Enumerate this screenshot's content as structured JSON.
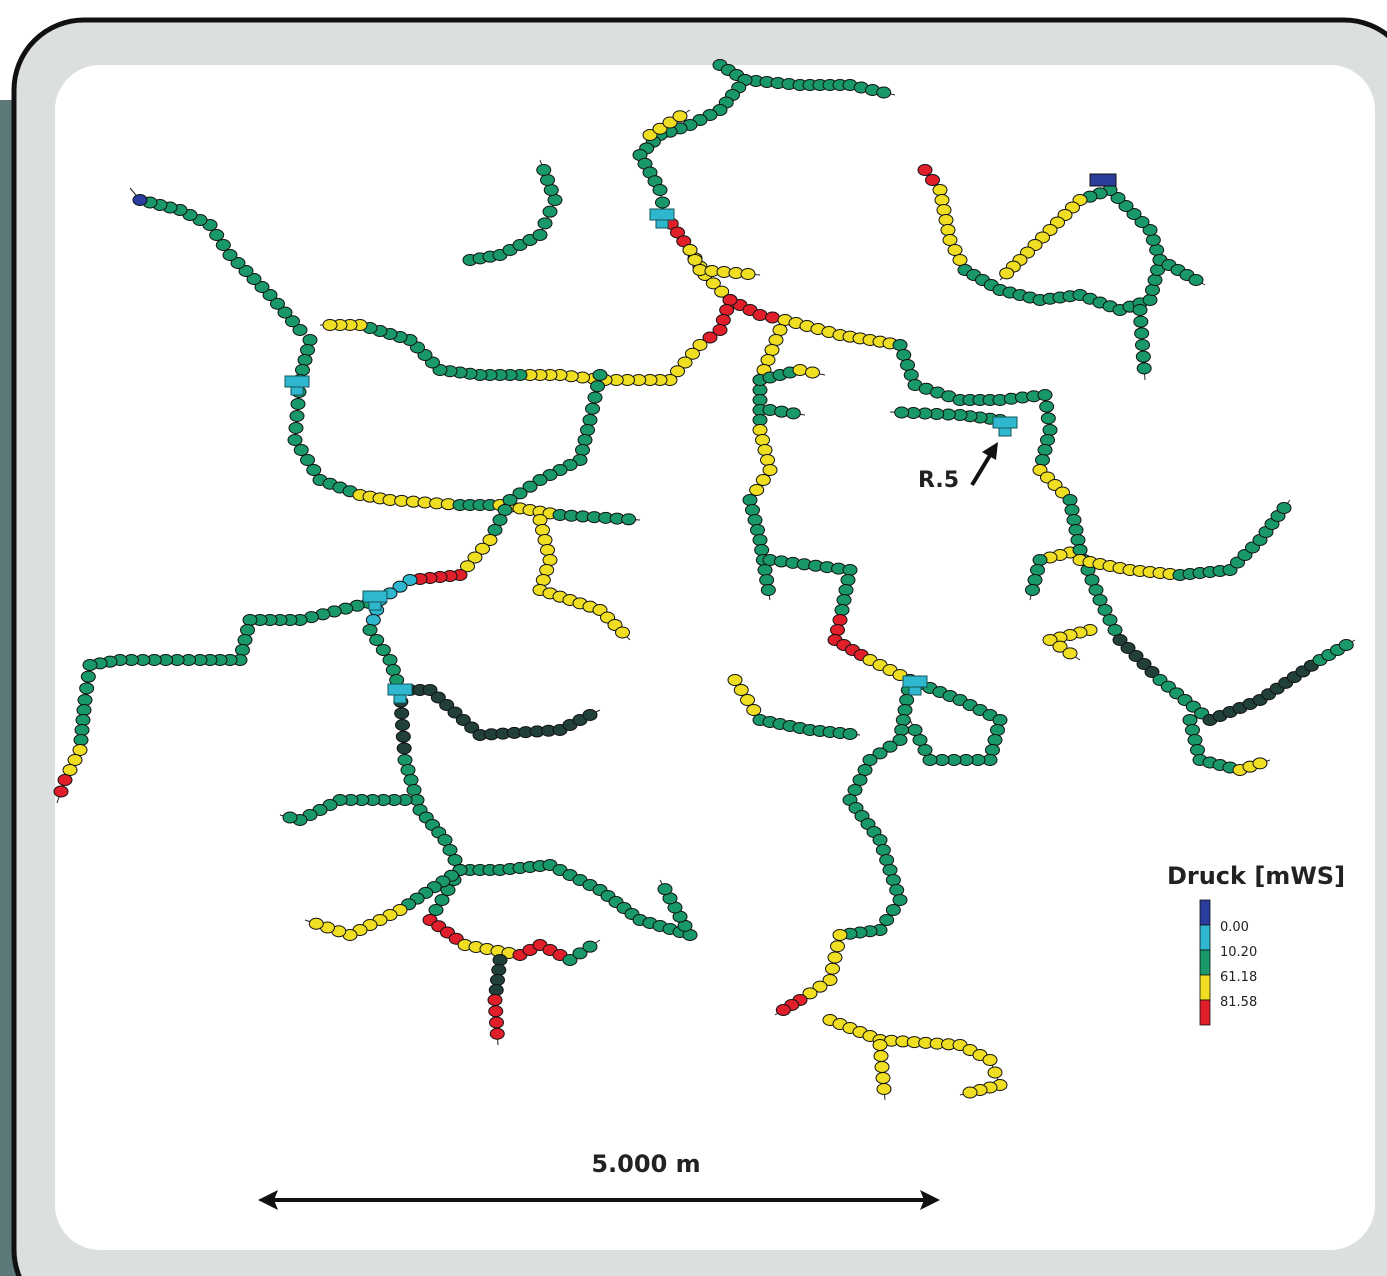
{
  "map": {
    "annotation": "R.5",
    "scale_label": "5.000 m",
    "legend": {
      "title": "Druck [mWS]",
      "items": [
        {
          "label": "0.00",
          "color": "#2a3c9c"
        },
        {
          "label": "10.20",
          "color": "#2fb7d0"
        },
        {
          "label": "61.18",
          "color": "#19986a"
        },
        {
          "label": "81.58",
          "color": "#f0de22"
        },
        {
          "color": "#e01f2b"
        }
      ]
    }
  }
}
